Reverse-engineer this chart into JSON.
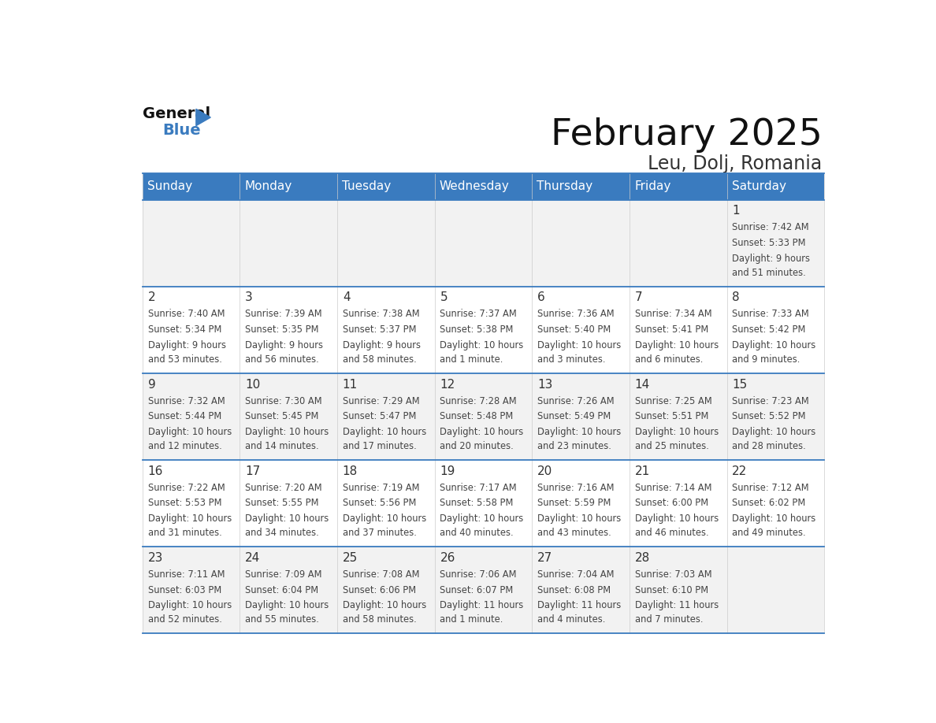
{
  "title": "February 2025",
  "subtitle": "Leu, Dolj, Romania",
  "header_color": "#3A7BBF",
  "header_text_color": "#FFFFFF",
  "day_names": [
    "Sunday",
    "Monday",
    "Tuesday",
    "Wednesday",
    "Thursday",
    "Friday",
    "Saturday"
  ],
  "background_color": "#FFFFFF",
  "cell_bg_even": "#F2F2F2",
  "cell_bg_odd": "#FFFFFF",
  "border_color": "#3A7BBF",
  "date_color": "#333333",
  "info_color": "#444444",
  "calendar": [
    [
      null,
      null,
      null,
      null,
      null,
      null,
      {
        "day": 1,
        "sunrise": "7:42 AM",
        "sunset": "5:33 PM",
        "daylight": "9 hours\nand 51 minutes."
      }
    ],
    [
      {
        "day": 2,
        "sunrise": "7:40 AM",
        "sunset": "5:34 PM",
        "daylight": "9 hours\nand 53 minutes."
      },
      {
        "day": 3,
        "sunrise": "7:39 AM",
        "sunset": "5:35 PM",
        "daylight": "9 hours\nand 56 minutes."
      },
      {
        "day": 4,
        "sunrise": "7:38 AM",
        "sunset": "5:37 PM",
        "daylight": "9 hours\nand 58 minutes."
      },
      {
        "day": 5,
        "sunrise": "7:37 AM",
        "sunset": "5:38 PM",
        "daylight": "10 hours\nand 1 minute."
      },
      {
        "day": 6,
        "sunrise": "7:36 AM",
        "sunset": "5:40 PM",
        "daylight": "10 hours\nand 3 minutes."
      },
      {
        "day": 7,
        "sunrise": "7:34 AM",
        "sunset": "5:41 PM",
        "daylight": "10 hours\nand 6 minutes."
      },
      {
        "day": 8,
        "sunrise": "7:33 AM",
        "sunset": "5:42 PM",
        "daylight": "10 hours\nand 9 minutes."
      }
    ],
    [
      {
        "day": 9,
        "sunrise": "7:32 AM",
        "sunset": "5:44 PM",
        "daylight": "10 hours\nand 12 minutes."
      },
      {
        "day": 10,
        "sunrise": "7:30 AM",
        "sunset": "5:45 PM",
        "daylight": "10 hours\nand 14 minutes."
      },
      {
        "day": 11,
        "sunrise": "7:29 AM",
        "sunset": "5:47 PM",
        "daylight": "10 hours\nand 17 minutes."
      },
      {
        "day": 12,
        "sunrise": "7:28 AM",
        "sunset": "5:48 PM",
        "daylight": "10 hours\nand 20 minutes."
      },
      {
        "day": 13,
        "sunrise": "7:26 AM",
        "sunset": "5:49 PM",
        "daylight": "10 hours\nand 23 minutes."
      },
      {
        "day": 14,
        "sunrise": "7:25 AM",
        "sunset": "5:51 PM",
        "daylight": "10 hours\nand 25 minutes."
      },
      {
        "day": 15,
        "sunrise": "7:23 AM",
        "sunset": "5:52 PM",
        "daylight": "10 hours\nand 28 minutes."
      }
    ],
    [
      {
        "day": 16,
        "sunrise": "7:22 AM",
        "sunset": "5:53 PM",
        "daylight": "10 hours\nand 31 minutes."
      },
      {
        "day": 17,
        "sunrise": "7:20 AM",
        "sunset": "5:55 PM",
        "daylight": "10 hours\nand 34 minutes."
      },
      {
        "day": 18,
        "sunrise": "7:19 AM",
        "sunset": "5:56 PM",
        "daylight": "10 hours\nand 37 minutes."
      },
      {
        "day": 19,
        "sunrise": "7:17 AM",
        "sunset": "5:58 PM",
        "daylight": "10 hours\nand 40 minutes."
      },
      {
        "day": 20,
        "sunrise": "7:16 AM",
        "sunset": "5:59 PM",
        "daylight": "10 hours\nand 43 minutes."
      },
      {
        "day": 21,
        "sunrise": "7:14 AM",
        "sunset": "6:00 PM",
        "daylight": "10 hours\nand 46 minutes."
      },
      {
        "day": 22,
        "sunrise": "7:12 AM",
        "sunset": "6:02 PM",
        "daylight": "10 hours\nand 49 minutes."
      }
    ],
    [
      {
        "day": 23,
        "sunrise": "7:11 AM",
        "sunset": "6:03 PM",
        "daylight": "10 hours\nand 52 minutes."
      },
      {
        "day": 24,
        "sunrise": "7:09 AM",
        "sunset": "6:04 PM",
        "daylight": "10 hours\nand 55 minutes."
      },
      {
        "day": 25,
        "sunrise": "7:08 AM",
        "sunset": "6:06 PM",
        "daylight": "10 hours\nand 58 minutes."
      },
      {
        "day": 26,
        "sunrise": "7:06 AM",
        "sunset": "6:07 PM",
        "daylight": "11 hours\nand 1 minute."
      },
      {
        "day": 27,
        "sunrise": "7:04 AM",
        "sunset": "6:08 PM",
        "daylight": "11 hours\nand 4 minutes."
      },
      {
        "day": 28,
        "sunrise": "7:03 AM",
        "sunset": "6:10 PM",
        "daylight": "11 hours\nand 7 minutes."
      },
      null
    ]
  ]
}
